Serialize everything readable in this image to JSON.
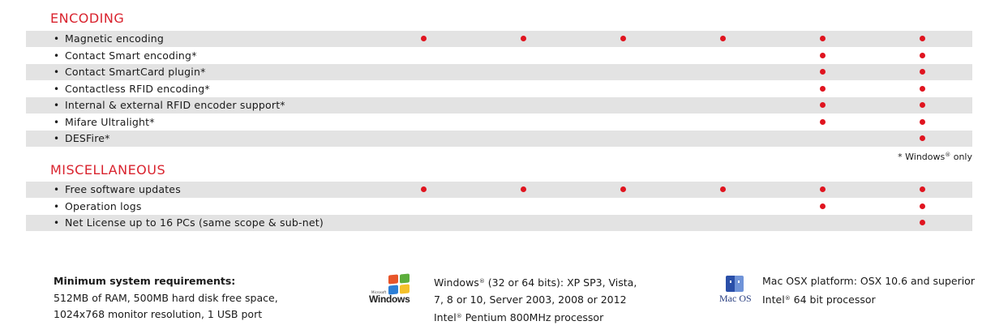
{
  "sections": [
    {
      "title": "ENCODING",
      "rows": [
        {
          "label": "Magnetic encoding",
          "marks": [
            true,
            true,
            true,
            true,
            true,
            true
          ]
        },
        {
          "label": "Contact Smart encoding*",
          "marks": [
            false,
            false,
            false,
            false,
            true,
            true
          ]
        },
        {
          "label": "Contact SmartCard plugin*",
          "marks": [
            false,
            false,
            false,
            false,
            true,
            true
          ]
        },
        {
          "label": "Contactless RFID encoding*",
          "marks": [
            false,
            false,
            false,
            false,
            true,
            true
          ]
        },
        {
          "label": "Internal & external RFID encoder support*",
          "marks": [
            false,
            false,
            false,
            false,
            true,
            true
          ]
        },
        {
          "label": "Mifare Ultralight*",
          "marks": [
            false,
            false,
            false,
            false,
            true,
            true
          ]
        },
        {
          "label": "DESFire*",
          "marks": [
            false,
            false,
            false,
            false,
            false,
            true
          ]
        }
      ]
    },
    {
      "title": "MISCELLANEOUS",
      "rows": [
        {
          "label": "Free software updates",
          "marks": [
            true,
            true,
            true,
            true,
            true,
            true
          ]
        },
        {
          "label": "Operation logs",
          "marks": [
            false,
            false,
            false,
            false,
            true,
            true
          ]
        },
        {
          "label": "Net License up to 16 PCs (same scope & sub-net)",
          "marks": [
            false,
            false,
            false,
            false,
            false,
            true
          ]
        }
      ]
    }
  ],
  "bullet_symbol": "•",
  "footnote": {
    "prefix": "* Windows",
    "sup": "®",
    "suffix": " only"
  },
  "requirements": {
    "heading": "Minimum system requirements:",
    "lines": [
      "512MB of RAM, 500MB hard disk free space,",
      "1024x768 monitor resolution, 1 USB port"
    ]
  },
  "windows": {
    "logo_micro": "Microsoft",
    "logo_word": "Windows",
    "line1_prefix": "Windows",
    "line1_sup": "®",
    "line1_suffix": " (32 or 64 bits): XP SP3, Vista,",
    "line2": "7, 8 or 10, Server 2003, 2008 or 2012",
    "line3_prefix": "Intel",
    "line3_sup": "®",
    "line3_suffix": " Pentium 800MHz processor"
  },
  "mac": {
    "logo_text": "Mac OS",
    "line1": "Mac OSX platform: OSX 10.6 and superior",
    "line2_prefix": "Intel",
    "line2_sup": "®",
    "line2_suffix": " 64 bit processor"
  },
  "colors": {
    "accent": "#d9232e",
    "dot": "#e0141f",
    "row_shade": "#e3e3e3"
  }
}
